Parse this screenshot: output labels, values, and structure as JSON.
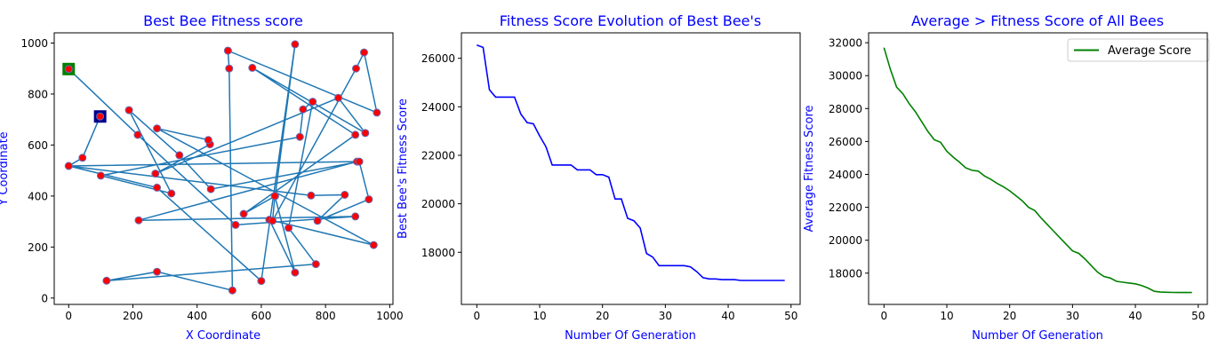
{
  "colors": {
    "label": "#0000ff",
    "route_line": "#1f77b4",
    "city_fill": "#ff0000",
    "city_edge": "#6a6ab4",
    "start_marker": "#008000",
    "end_marker": "#00008b",
    "best_line": "#0000ff",
    "avg_line": "#008000",
    "axis": "#000000"
  },
  "chart_data": [
    {
      "type": "scatter",
      "title": "Best Bee Fitness score",
      "xlabel": "X Coordinate",
      "ylabel": "Y Coordinate",
      "xlim": [
        -45,
        1010
      ],
      "ylim": [
        -25,
        1040
      ],
      "xticks": [
        0,
        200,
        400,
        600,
        800,
        1000
      ],
      "yticks": [
        0,
        200,
        400,
        600,
        800,
        1000
      ],
      "route": [
        [
          0,
          898
        ],
        [
          215,
          640
        ],
        [
          520,
          287
        ],
        [
          893,
          320
        ],
        [
          218,
          305
        ],
        [
          898,
          535
        ],
        [
          0,
          518
        ],
        [
          275,
          433
        ],
        [
          600,
          67
        ],
        [
          705,
          995
        ],
        [
          643,
          400
        ],
        [
          545,
          330
        ],
        [
          893,
          640
        ],
        [
          572,
          903
        ],
        [
          924,
          647
        ],
        [
          840,
          785
        ],
        [
          270,
          488
        ],
        [
          440,
          603
        ],
        [
          435,
          620
        ],
        [
          275,
          665
        ],
        [
          950,
          208
        ],
        [
          625,
          307
        ],
        [
          705,
          100
        ],
        [
          642,
          400
        ],
        [
          635,
          303
        ],
        [
          895,
          900
        ],
        [
          920,
          963
        ],
        [
          960,
          727
        ],
        [
          496,
          970
        ],
        [
          500,
          900
        ],
        [
          510,
          30
        ],
        [
          275,
          103
        ],
        [
          118,
          68
        ],
        [
          770,
          133
        ],
        [
          685,
          275
        ],
        [
          760,
          770
        ],
        [
          730,
          740
        ],
        [
          720,
          632
        ],
        [
          100,
          480
        ],
        [
          320,
          410
        ],
        [
          188,
          737
        ],
        [
          345,
          560
        ],
        [
          443,
          427
        ],
        [
          905,
          535
        ],
        [
          935,
          387
        ],
        [
          775,
          303
        ],
        [
          860,
          405
        ],
        [
          755,
          402
        ],
        [
          0,
          518
        ],
        [
          43,
          550
        ],
        [
          98,
          712
        ]
      ],
      "start": [
        0,
        898
      ],
      "end": [
        98,
        712
      ]
    },
    {
      "type": "line",
      "title": "Fitness Score Evolution of Best Bee's",
      "xlabel": "Number Of Generation",
      "ylabel": "Best Bee's Fitness Score",
      "xlim": [
        -2.45,
        51.45
      ],
      "ylim": [
        15850,
        27050
      ],
      "xticks": [
        0,
        10,
        20,
        30,
        40,
        50
      ],
      "yticks": [
        18000,
        20000,
        22000,
        24000,
        26000
      ],
      "series": [
        {
          "values": [
            26550,
            26450,
            24700,
            24400,
            24400,
            24400,
            24400,
            23700,
            23350,
            23300,
            22800,
            22350,
            21600,
            21600,
            21600,
            21600,
            21400,
            21400,
            21400,
            21200,
            21200,
            21100,
            20200,
            20200,
            19400,
            19300,
            19000,
            17950,
            17800,
            17450,
            17450,
            17450,
            17450,
            17450,
            17400,
            17200,
            16950,
            16900,
            16900,
            16870,
            16870,
            16870,
            16840,
            16840,
            16840,
            16840,
            16840,
            16840,
            16840,
            16840
          ]
        }
      ]
    },
    {
      "type": "line",
      "title": "Average > Fitness Score of All Bees",
      "xlabel": "Number Of Generation",
      "ylabel": "Average Fitness Score",
      "xlim": [
        -2.45,
        51.45
      ],
      "ylim": [
        16100,
        32600
      ],
      "xticks": [
        0,
        10,
        20,
        30,
        40,
        50
      ],
      "yticks": [
        18000,
        20000,
        22000,
        24000,
        26000,
        28000,
        30000,
        32000
      ],
      "legend_position": "top-right",
      "series": [
        {
          "name": "Average Score",
          "values": [
            31700,
            30400,
            29300,
            28900,
            28300,
            27800,
            27200,
            26600,
            26100,
            25950,
            25400,
            25050,
            24750,
            24400,
            24250,
            24200,
            23900,
            23700,
            23450,
            23250,
            23000,
            22700,
            22400,
            22000,
            21800,
            21350,
            20950,
            20550,
            20150,
            19750,
            19350,
            19200,
            18850,
            18450,
            18050,
            17800,
            17700,
            17500,
            17450,
            17400,
            17350,
            17250,
            17100,
            16900,
            16850,
            16840,
            16830,
            16820,
            16820,
            16820
          ]
        }
      ]
    }
  ]
}
